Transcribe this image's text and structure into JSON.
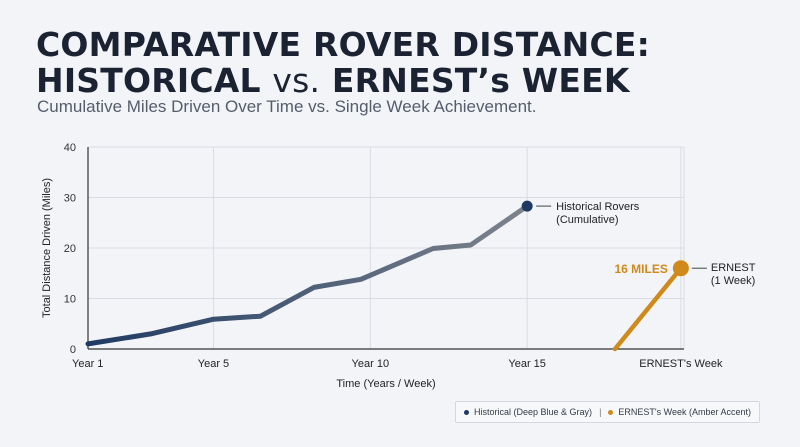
{
  "title_line1": "COMPARATIVE ROVER DISTANCE:",
  "title_historical": "HISTORICAL",
  "title_vs": "vs.",
  "title_ernest": "ERNEST’s WEEK",
  "subtitle": "Cumulative Miles Driven Over Time vs. Single Week Achievement.",
  "colors": {
    "historical_start": "#1f3a63",
    "historical_end": "#7f858d",
    "historical_dot": "#1e3a63",
    "ernest": "#d08a1c",
    "grid": "#d9dde3",
    "axis": "#333333"
  },
  "legend": {
    "historical": "Historical (Deep Blue & Gray)",
    "separator": "|",
    "ernest": "ERNEST's Week (Amber Accent)"
  },
  "chart_data": {
    "type": "line",
    "xlabel": "Time (Years / Week)",
    "ylabel": "Total Distance Driven (Miles)",
    "x_ticks": [
      {
        "x": 1,
        "label": "Year 1"
      },
      {
        "x": 5,
        "label": "Year 5"
      },
      {
        "x": 10,
        "label": "Year 10"
      },
      {
        "x": 15,
        "label": "Year 15"
      },
      {
        "x": 19.9,
        "label": "ERNEST's Week"
      }
    ],
    "xlim": [
      1,
      20
    ],
    "ylim": [
      0,
      40
    ],
    "y_ticks": [
      0,
      10,
      20,
      30,
      40
    ],
    "grid": true,
    "series": [
      {
        "name": "Historical Rovers (Cumulative)",
        "annotation_line1": "Historical Rovers",
        "annotation_line2": "(Cumulative)",
        "x": [
          1,
          3,
          5,
          6.5,
          8.2,
          9.7,
          12,
          13.2,
          15
        ],
        "y": [
          1,
          3,
          5.9,
          6.5,
          12.2,
          13.8,
          19.9,
          20.6,
          28.3
        ]
      },
      {
        "name": "ERNEST (1 Week)",
        "annotation_line1": "ERNEST",
        "annotation_line2": "(1 Week)",
        "value_label": "16 MILES",
        "x": [
          17.8,
          19.9
        ],
        "y": [
          0,
          16
        ]
      }
    ]
  }
}
